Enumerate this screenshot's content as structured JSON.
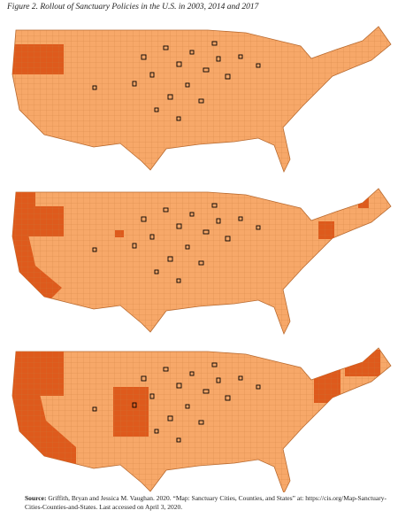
{
  "title": "Figure 2. Rollout of Sanctuary Policies in the U.S. in 2003, 2014 and 2017",
  "source": {
    "label": "Source:",
    "text": "Griffith, Bryan and Jessica M. Vaughan.  2020.  “Map: Sanctuary Cities, Counties, and States” at: https://cis.org/Map-Sanctuary-Cities-Counties-and-States.  Last accessed on April 3, 2020."
  }
}
